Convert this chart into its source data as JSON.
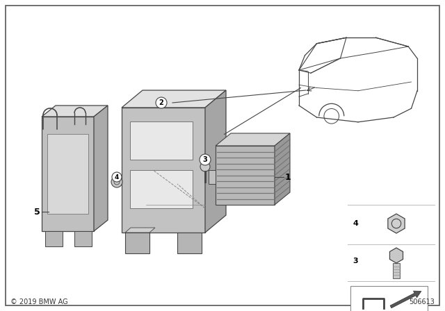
{
  "background_color": "#ffffff",
  "copyright_text": "© 2019 BMW AG",
  "part_number": "506613",
  "line_color": "#444444",
  "gray_light": "#d0d0d0",
  "gray_mid": "#b0b0b0",
  "gray_dark": "#888888",
  "gray_darker": "#666666"
}
